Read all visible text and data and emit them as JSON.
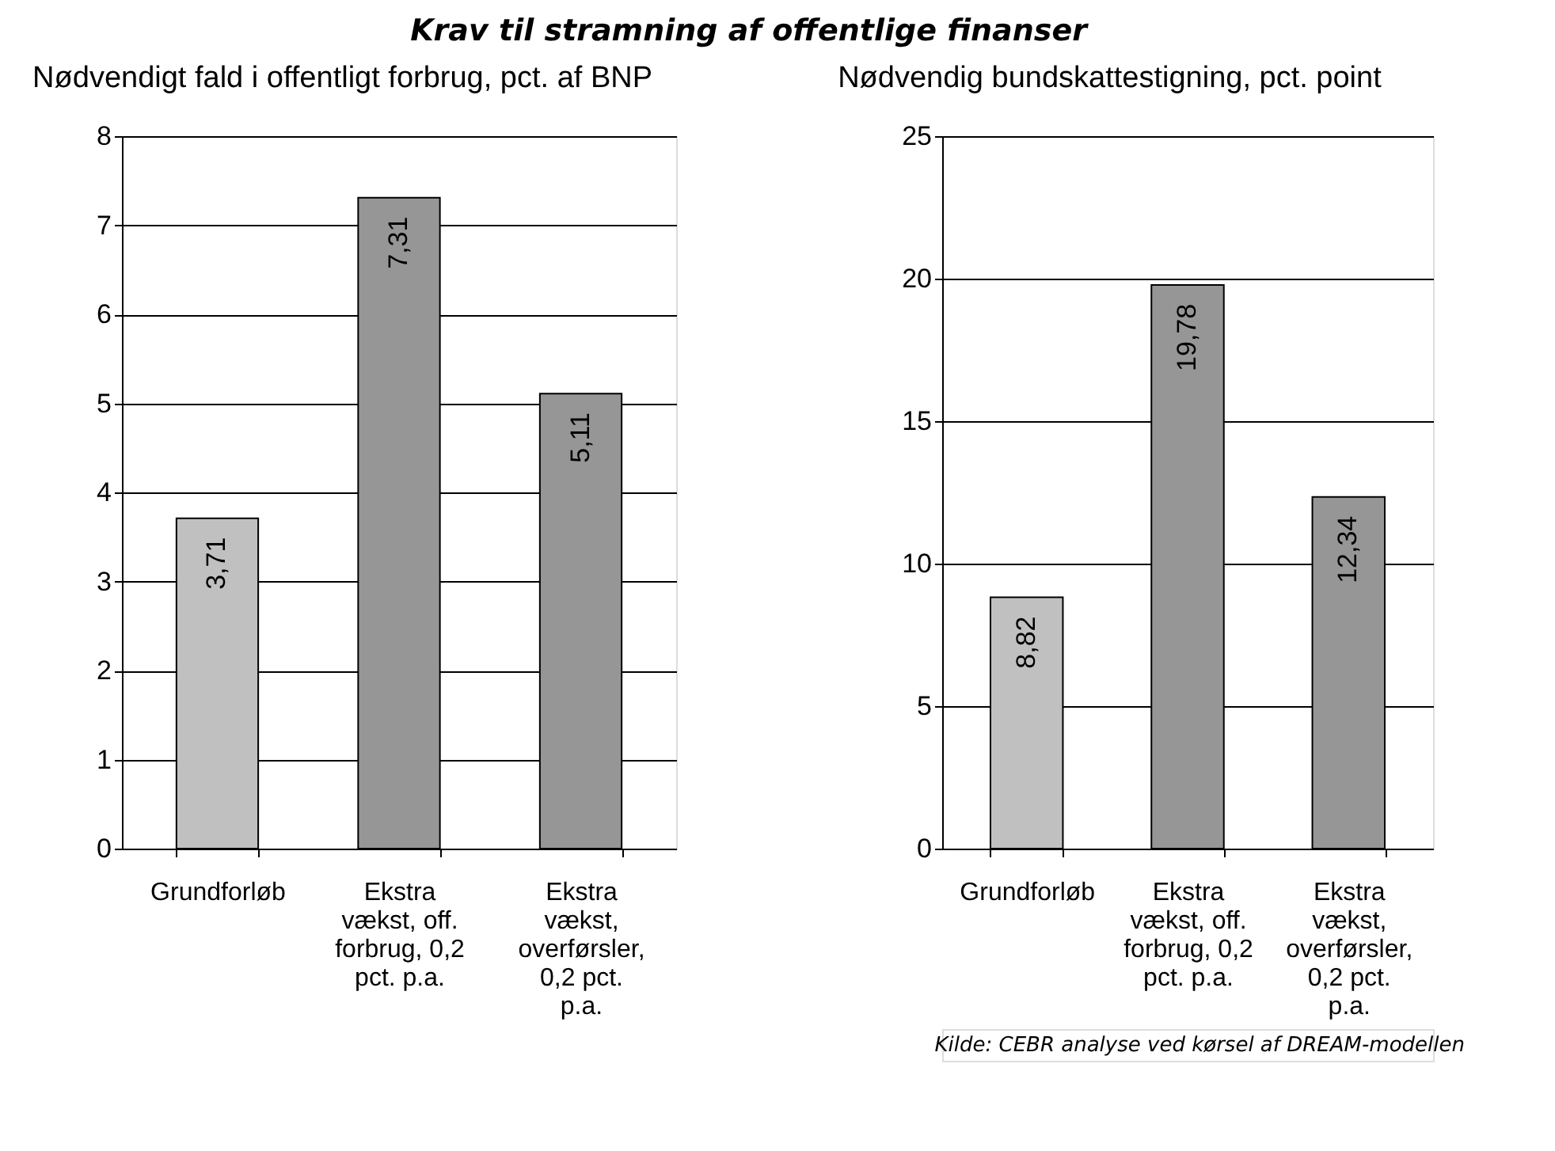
{
  "chart_data": [
    {
      "type": "bar",
      "title": "Krav til stramning af offentlige finanser",
      "ylabel": "Nødvendigt fald i offentligt forbrug, pct. af BNP",
      "categories": [
        "Grundforløb",
        "Ekstra vækst, off. forbrug, 0,2 pct. p.a.",
        "Ekstra vækst, overførsler, 0,2 pct. p.a."
      ],
      "values": [
        3.71,
        7.31,
        5.11
      ],
      "colors": [
        "#c0c0c0",
        "#969696",
        "#969696"
      ],
      "value_labels": [
        "3,71",
        "7,31",
        "5,11"
      ],
      "ylim": [
        0,
        8
      ],
      "yticks": [
        0,
        1,
        2,
        3,
        4,
        5,
        6,
        7,
        8
      ],
      "grid": "y"
    },
    {
      "type": "bar",
      "ylabel": "Nødvendig bundskattestigning, pct. point",
      "categories": [
        "Grundforløb",
        "Ekstra vækst, off. forbrug, 0,2 pct. p.a.",
        "Ekstra vækst, overførsler, 0,2 pct. p.a."
      ],
      "values": [
        8.82,
        19.78,
        12.34
      ],
      "colors": [
        "#c0c0c0",
        "#969696",
        "#969696"
      ],
      "value_labels": [
        "8,82",
        "19,78",
        "12,34"
      ],
      "ylim": [
        0,
        25
      ],
      "yticks": [
        0,
        5,
        10,
        15,
        20,
        25
      ],
      "grid": "y",
      "annotations": [
        "Kilde: CEBR analyse ved kørsel af DREAM-modellen"
      ]
    }
  ]
}
